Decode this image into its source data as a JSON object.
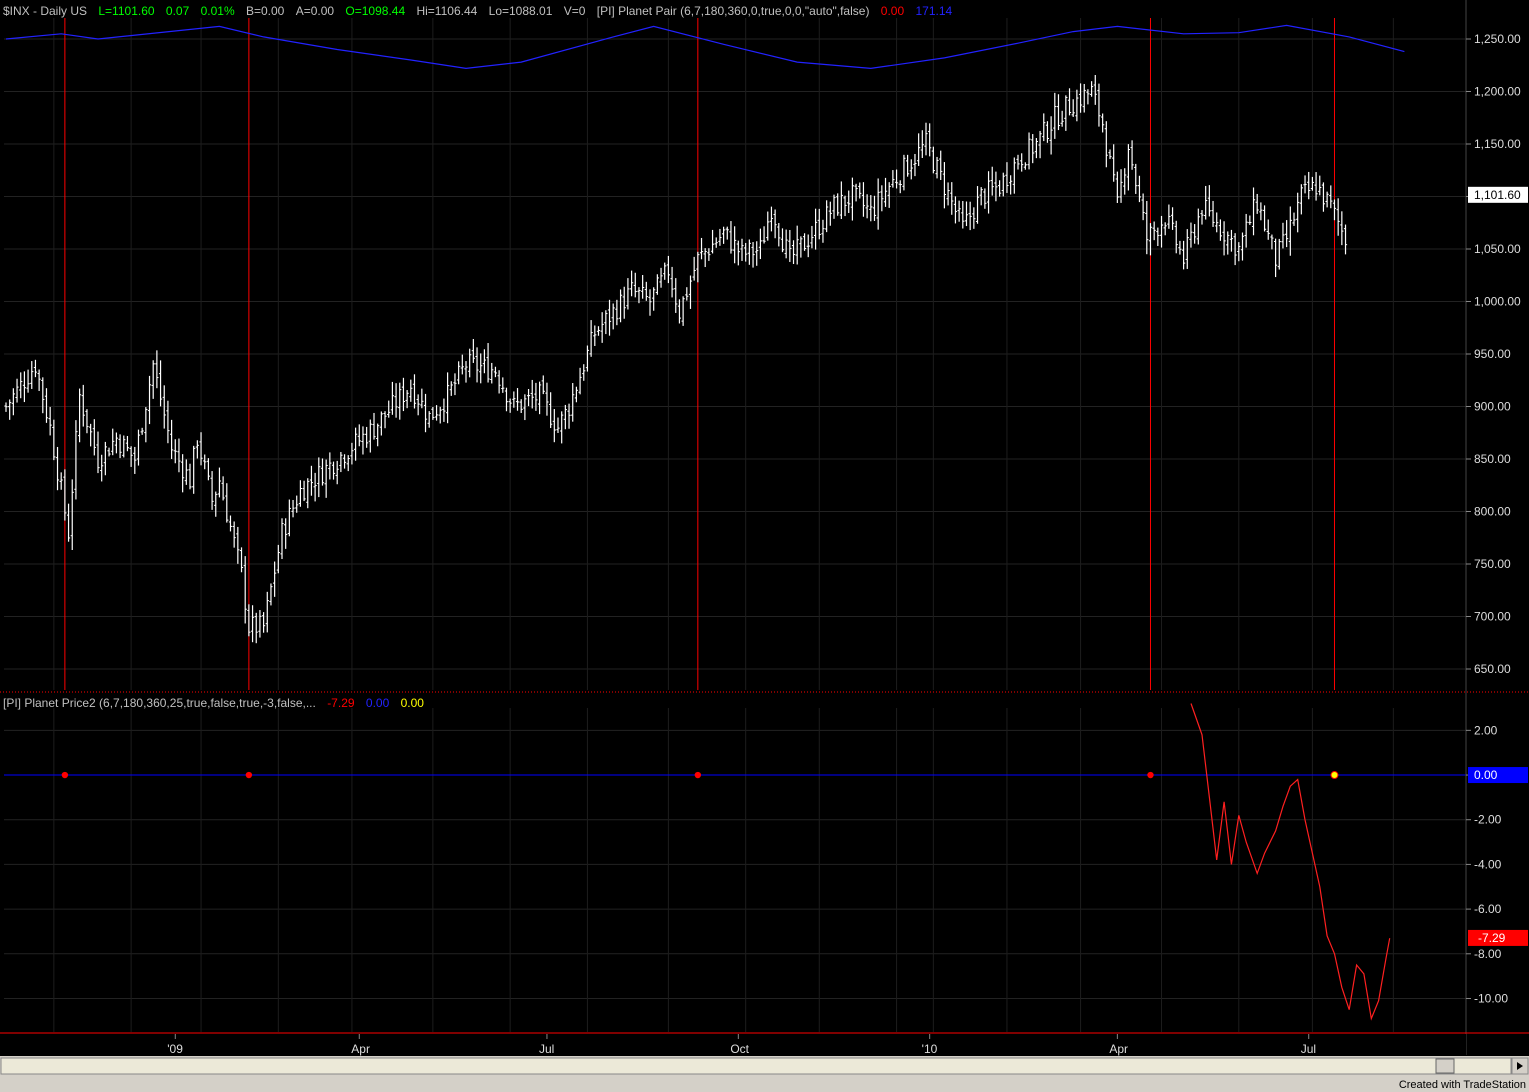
{
  "header": {
    "symbol": "$INX - Daily  US",
    "last": "L=1101.60",
    "change": "0.07",
    "change_pct": "0.01%",
    "bid": "B=0.00",
    "ask": "A=0.00",
    "open": "O=1098.44",
    "high": "Hi=1106.44",
    "low": "Lo=1088.01",
    "volume": "V=0",
    "indicator": "[PI] Planet Pair (6,7,180,360,0,true,0,0,\"auto\",false)",
    "ind_val1": "0.00",
    "ind_val2": "171.14"
  },
  "subheader": {
    "indicator": "[PI] Planet Price2 (6,7,180,360,25,true,false,true,-3,false,...",
    "val1": "-7.29",
    "val2": "0.00",
    "val3": "0.00"
  },
  "footer": {
    "credit": "Created with TradeStation"
  },
  "colors": {
    "background": "#000000",
    "price_bars": "#ffffff",
    "planet_pair": "#2222ff",
    "event_lines": "#ff0000",
    "oscillator": "#ff2020",
    "zero_line": "#0000ff",
    "up_text": "#00ff00",
    "gray_text": "#c0c0c0"
  },
  "chart_data": [
    {
      "type": "ohlc",
      "series_name": "$INX",
      "ylim": [
        630,
        1270
      ],
      "y_ticks": [
        "650.00",
        "700.00",
        "750.00",
        "800.00",
        "850.00",
        "900.00",
        "950.00",
        "1,000.00",
        "1,050.00",
        "1,100.00",
        "1,150.00",
        "1,200.00",
        "1,250.00"
      ],
      "last_value_label": "1,101.60",
      "x_tick_labels": [
        "'09",
        "Apr",
        "Jul",
        "Oct",
        "'10",
        "Apr",
        "Jul"
      ],
      "close_path": [
        [
          0,
          900
        ],
        [
          8,
          940
        ],
        [
          12,
          880
        ],
        [
          17,
          780
        ],
        [
          20,
          910
        ],
        [
          25,
          850
        ],
        [
          30,
          870
        ],
        [
          35,
          850
        ],
        [
          40,
          940
        ],
        [
          45,
          860
        ],
        [
          50,
          830
        ],
        [
          52,
          870
        ],
        [
          56,
          810
        ],
        [
          58,
          830
        ],
        [
          64,
          740
        ],
        [
          66,
          690
        ],
        [
          70,
          690
        ],
        [
          75,
          780
        ],
        [
          80,
          820
        ],
        [
          90,
          850
        ],
        [
          100,
          880
        ],
        [
          110,
          920
        ],
        [
          115,
          890
        ],
        [
          120,
          910
        ],
        [
          125,
          940
        ],
        [
          133,
          935
        ],
        [
          138,
          900
        ],
        [
          145,
          910
        ],
        [
          150,
          880
        ],
        [
          153,
          900
        ],
        [
          160,
          970
        ],
        [
          165,
          990
        ],
        [
          170,
          1010
        ],
        [
          175,
          1000
        ],
        [
          180,
          1030
        ],
        [
          183,
          990
        ],
        [
          188,
          1040
        ],
        [
          195,
          1065
        ],
        [
          200,
          1045
        ],
        [
          205,
          1050
        ],
        [
          208,
          1090
        ],
        [
          213,
          1040
        ],
        [
          218,
          1060
        ],
        [
          225,
          1090
        ],
        [
          230,
          1100
        ],
        [
          235,
          1085
        ],
        [
          240,
          1110
        ],
        [
          245,
          1130
        ],
        [
          250,
          1150
        ],
        [
          255,
          1110
        ],
        [
          260,
          1070
        ],
        [
          265,
          1100
        ],
        [
          270,
          1110
        ],
        [
          275,
          1135
        ],
        [
          280,
          1150
        ],
        [
          285,
          1175
        ],
        [
          290,
          1190
        ],
        [
          295,
          1200
        ],
        [
          298,
          1170
        ],
        [
          302,
          1090
        ],
        [
          305,
          1150
        ],
        [
          310,
          1060
        ],
        [
          315,
          1080
        ],
        [
          320,
          1040
        ],
        [
          325,
          1090
        ],
        [
          330,
          1070
        ],
        [
          335,
          1050
        ],
        [
          340,
          1095
        ],
        [
          345,
          1040
        ],
        [
          348,
          1060
        ],
        [
          352,
          1100
        ],
        [
          356,
          1110
        ],
        [
          360,
          1090
        ],
        [
          364,
          1060
        ]
      ]
    },
    {
      "type": "line",
      "series_name": "Planet Pair",
      "points": [
        [
          0,
          1250
        ],
        [
          15,
          1255
        ],
        [
          25,
          1250
        ],
        [
          58,
          1262
        ],
        [
          70,
          1252
        ],
        [
          90,
          1240
        ],
        [
          110,
          1230
        ],
        [
          125,
          1222
        ],
        [
          140,
          1228
        ],
        [
          165,
          1252
        ],
        [
          176,
          1262
        ],
        [
          195,
          1245
        ],
        [
          215,
          1228
        ],
        [
          235,
          1222
        ],
        [
          255,
          1232
        ],
        [
          275,
          1246
        ],
        [
          290,
          1257
        ],
        [
          302,
          1262
        ],
        [
          320,
          1255
        ],
        [
          335,
          1256
        ],
        [
          348,
          1263
        ],
        [
          365,
          1252
        ],
        [
          380,
          1238
        ]
      ]
    },
    {
      "type": "line",
      "series_name": "Planet Price2",
      "ylim": [
        -11.5,
        3.0
      ],
      "y_ticks": [
        "2.00",
        "0.00",
        "-2.00",
        "-4.00",
        "-6.00",
        "-8.00",
        "-10.00"
      ],
      "zero_label": "0.00",
      "last_value_label": "-7.29",
      "points": [
        [
          322,
          3.2
        ],
        [
          325,
          1.8
        ],
        [
          327,
          -1.0
        ],
        [
          329,
          -3.8
        ],
        [
          331,
          -1.2
        ],
        [
          333,
          -4.0
        ],
        [
          335,
          -1.8
        ],
        [
          337,
          -3.0
        ],
        [
          340,
          -4.4
        ],
        [
          342,
          -3.5
        ],
        [
          345,
          -2.5
        ],
        [
          347,
          -1.4
        ],
        [
          349,
          -0.5
        ],
        [
          351,
          -0.2
        ],
        [
          353,
          -2.0
        ],
        [
          355,
          -3.5
        ],
        [
          357,
          -5.0
        ],
        [
          359,
          -7.2
        ],
        [
          361,
          -8.0
        ],
        [
          363,
          -9.5
        ],
        [
          365,
          -10.5
        ],
        [
          367,
          -8.5
        ],
        [
          369,
          -8.9
        ],
        [
          371,
          -10.9
        ],
        [
          373,
          -10.1
        ],
        [
          375,
          -8.2
        ],
        [
          376,
          -7.3
        ]
      ],
      "event_markers": [
        16,
        66,
        188,
        311,
        361
      ],
      "highlight_marker": 361
    }
  ],
  "event_lines": [
    16,
    66,
    188,
    311,
    361
  ]
}
